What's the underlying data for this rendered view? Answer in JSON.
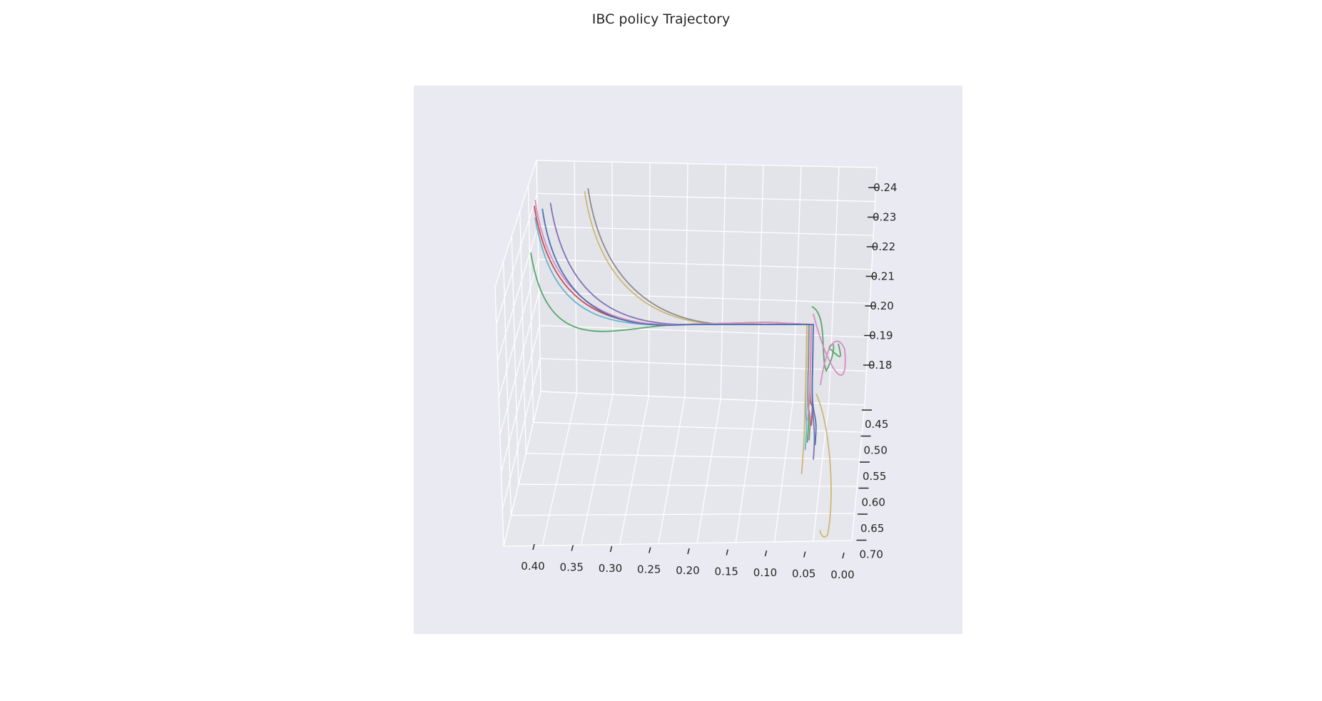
{
  "colors": {
    "panel": "#eaeaf2",
    "pane_back": "#e3e3ea",
    "pane_floor": "#e6e6ed",
    "pane_side": "#e5e5ec",
    "grid": "#ffffff",
    "series": [
      "#4c72b0",
      "#dd8452",
      "#55a868",
      "#c44e52",
      "#8172b3",
      "#937860",
      "#da8bc3",
      "#8c8c8c",
      "#ccb974",
      "#64b5cd"
    ]
  },
  "chart_data": {
    "type": "line",
    "projection": "3d",
    "title": "IBC policy Trajectory",
    "grid": true,
    "legend": "none",
    "axes": {
      "x": {
        "ticks": [
          "0.40",
          "0.35",
          "0.30",
          "0.25",
          "0.20",
          "0.15",
          "0.10",
          "0.05",
          "0.00"
        ],
        "direction": "decreasing left to right"
      },
      "y": {
        "ticks": [
          "0.45",
          "0.50",
          "0.55",
          "0.60",
          "0.65",
          "0.70"
        ]
      },
      "z": {
        "ticks": [
          "0.18",
          "0.19",
          "0.20",
          "0.21",
          "0.22",
          "0.23",
          "0.24"
        ]
      }
    },
    "series": [
      {
        "color_index": 9,
        "approach": [
          0.4,
          0.23
        ],
        "descent": [
          0.035,
          0.6
        ]
      },
      {
        "color_index": 2,
        "approach": [
          0.4,
          0.218
        ],
        "descent": [
          0.035,
          0.57
        ]
      },
      {
        "color_index": 3,
        "approach": [
          0.39,
          0.234
        ],
        "descent": [
          0.04,
          0.5
        ]
      },
      {
        "color_index": 4,
        "approach": [
          0.38,
          0.235
        ],
        "descent": [
          0.04,
          0.64
        ]
      },
      {
        "color_index": 8,
        "approach": [
          0.33,
          0.239
        ],
        "descent": [
          0.025,
          0.7
        ]
      },
      {
        "color_index": 7,
        "approach": [
          0.32,
          0.24
        ],
        "descent": [
          0.04,
          0.56
        ]
      },
      {
        "color_index": 6,
        "approach": [
          0.4,
          0.236
        ],
        "descent": [
          0.03,
          0.48
        ]
      },
      {
        "color_index": 0,
        "approach": [
          0.385,
          0.233
        ],
        "descent": [
          0.045,
          0.58
        ]
      }
    ]
  }
}
